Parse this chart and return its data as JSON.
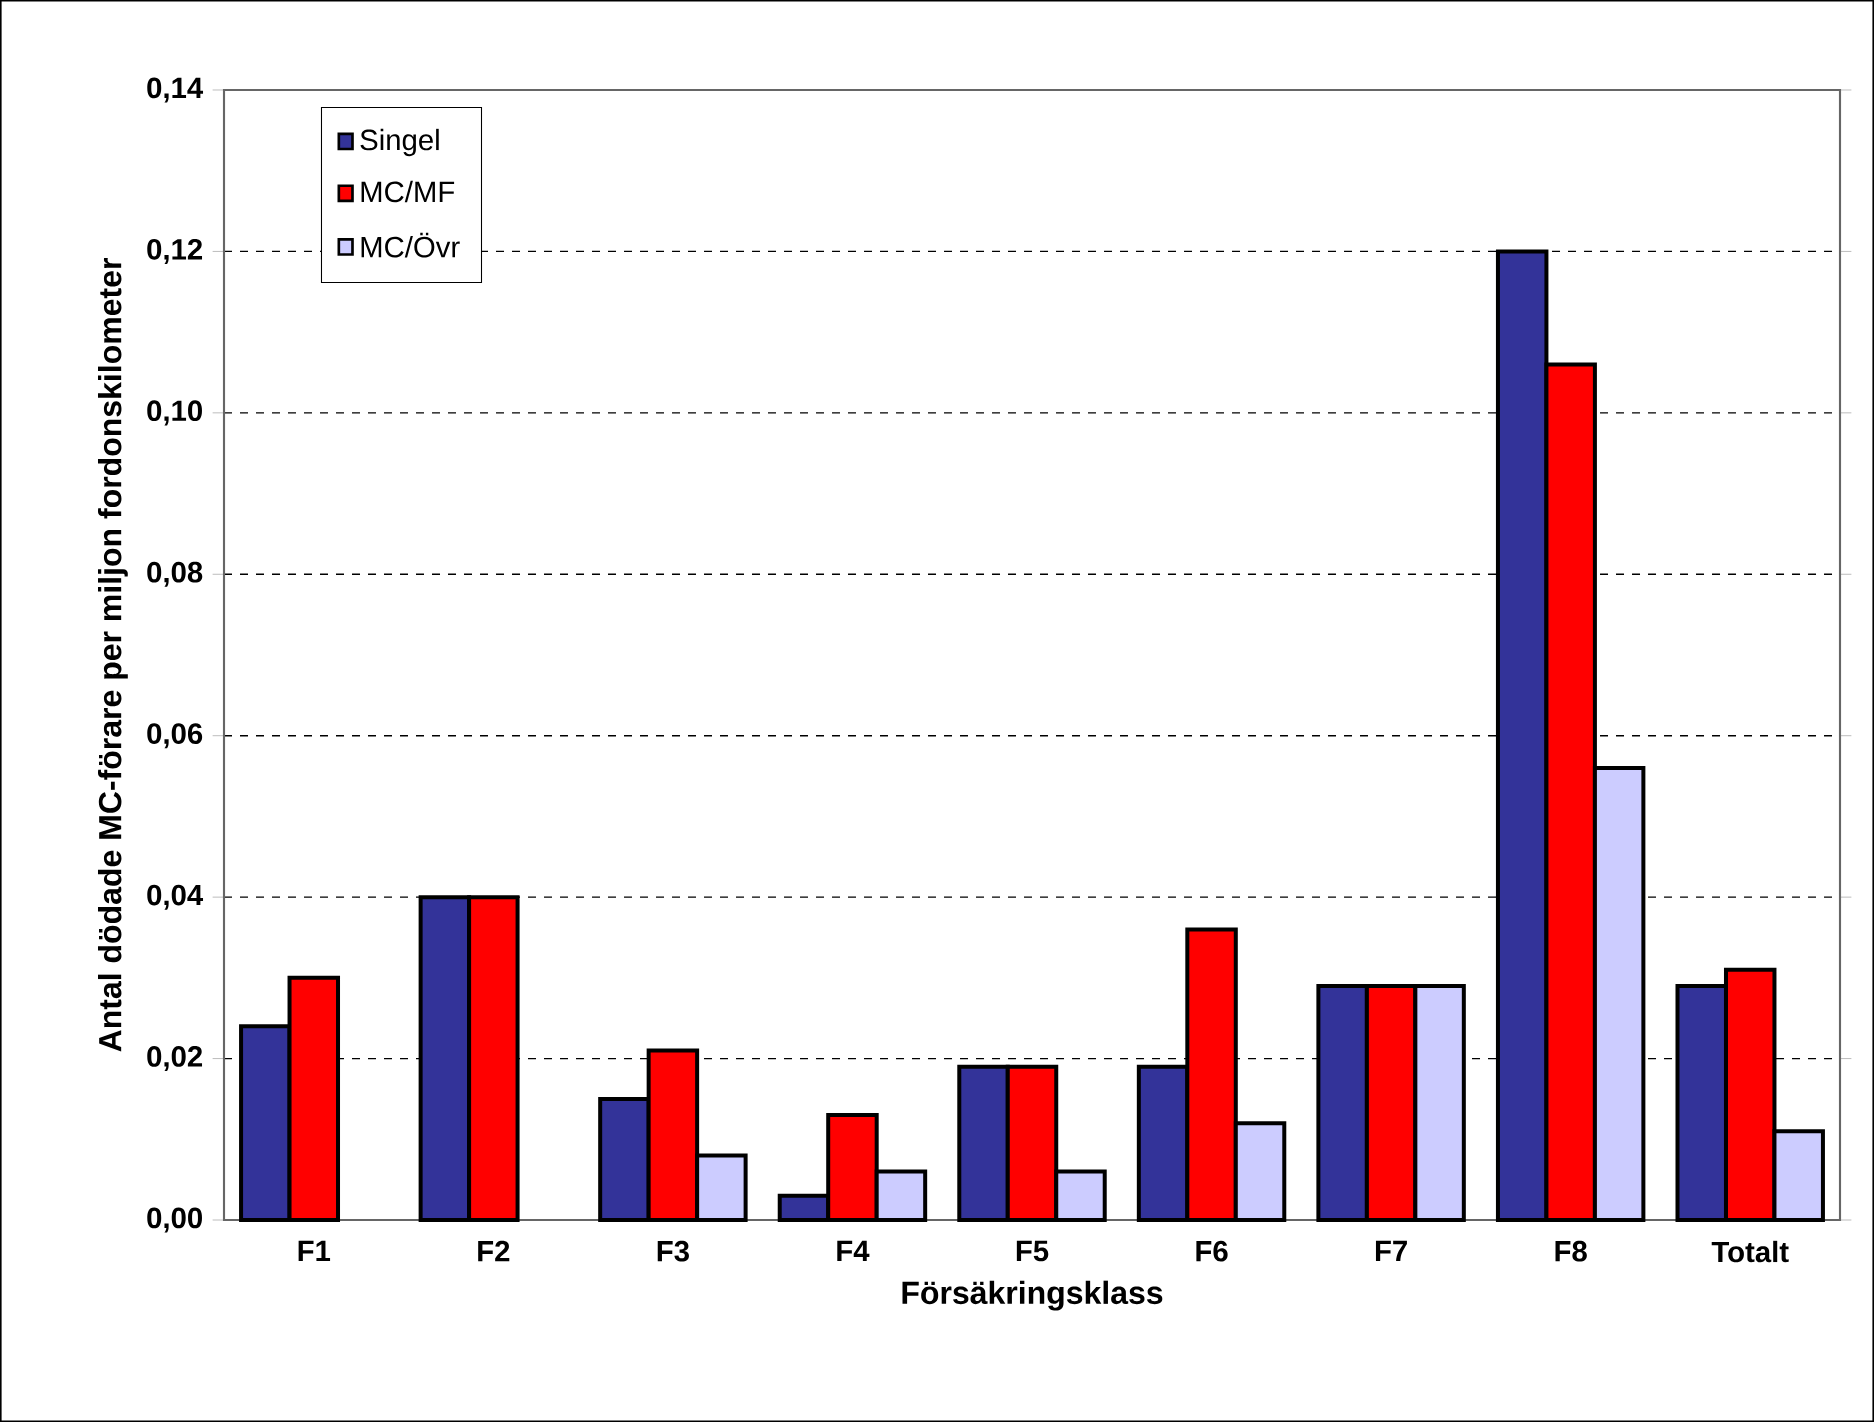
{
  "chart_data": {
    "type": "bar",
    "xlabel": "Försäkringsklass",
    "ylabel": "Antal dödade MC-förare per miljon fordonskilometer",
    "categories": [
      "F1",
      "F2",
      "F3",
      "F4",
      "F5",
      "F6",
      "F7",
      "F8",
      "Totalt"
    ],
    "series": [
      {
        "name": "Singel",
        "color": "#333399",
        "values": [
          0.024,
          0.04,
          0.015,
          0.003,
          0.019,
          0.019,
          0.029,
          0.12,
          0.029
        ]
      },
      {
        "name": "MC/MF",
        "color": "#ff0000",
        "values": [
          0.03,
          0.04,
          0.021,
          0.013,
          0.019,
          0.036,
          0.029,
          0.106,
          0.031
        ]
      },
      {
        "name": "MC/Övr",
        "color": "#ccccff",
        "values": [
          null,
          null,
          0.008,
          0.006,
          0.006,
          0.012,
          0.029,
          0.056,
          0.011
        ]
      }
    ],
    "ylim": [
      0,
      0.14
    ],
    "yticks": [
      {
        "value": 0,
        "label": "0,00"
      },
      {
        "value": 0.02,
        "label": "0,02"
      },
      {
        "value": 0.04,
        "label": "0,04"
      },
      {
        "value": 0.06,
        "label": "0,06"
      },
      {
        "value": 0.08,
        "label": "0,08"
      },
      {
        "value": 0.1,
        "label": "0,10"
      },
      {
        "value": 0.12,
        "label": "0,12"
      },
      {
        "value": 0.14,
        "label": "0,14"
      }
    ],
    "grid": "y",
    "legend": "top left"
  }
}
